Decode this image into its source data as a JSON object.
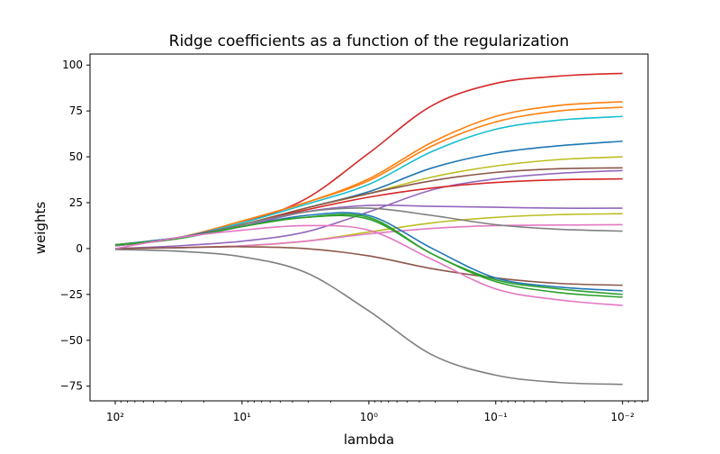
{
  "chart_data": {
    "type": "line",
    "title": "Ridge coefficients as a function of the regularization",
    "xlabel": "lambda",
    "ylabel": "weights",
    "x_scale": "log",
    "x_reversed": true,
    "xlim": [
      158,
      0.0063
    ],
    "ylim": [
      -83,
      106
    ],
    "grid": false,
    "legend": "none",
    "x_ticks": [
      {
        "value": 100,
        "label": "10²"
      },
      {
        "value": 10,
        "label": "10¹"
      },
      {
        "value": 1,
        "label": "10⁰"
      },
      {
        "value": 0.1,
        "label": "10⁻¹"
      },
      {
        "value": 0.01,
        "label": "10⁻²"
      }
    ],
    "y_ticks": [
      -75,
      -50,
      -25,
      0,
      25,
      50,
      75,
      100
    ],
    "x": [
      100,
      31.6,
      10,
      3.16,
      1,
      0.316,
      0.1,
      0.0316,
      0.01
    ],
    "series": [
      {
        "color": "#d62728",
        "values": [
          2,
          6,
          14,
          27,
          52,
          78,
          90,
          94,
          95.5
        ]
      },
      {
        "color": "#ff7f0e",
        "values": [
          2,
          6,
          15,
          25,
          38,
          58,
          72,
          78,
          80
        ]
      },
      {
        "color": "#ff7f0e",
        "values": [
          2,
          6,
          15,
          25,
          37,
          56,
          69,
          75,
          77
        ]
      },
      {
        "color": "#17becf",
        "values": [
          2,
          6,
          14,
          24,
          35,
          53,
          65,
          70,
          72
        ]
      },
      {
        "color": "#1f77b4",
        "values": [
          2,
          6,
          13,
          22,
          31,
          44,
          52,
          56,
          58.5
        ]
      },
      {
        "color": "#bcbd22",
        "values": [
          1.5,
          5.5,
          13,
          22,
          30,
          39,
          45,
          48.5,
          50
        ]
      },
      {
        "color": "#8c564b",
        "values": [
          1.5,
          5.5,
          13,
          22,
          30,
          37,
          41.5,
          43.5,
          44
        ]
      },
      {
        "color": "#9467bd",
        "values": [
          0,
          1.5,
          4,
          9,
          20,
          32,
          38,
          41,
          42.5
        ]
      },
      {
        "color": "#d62728",
        "values": [
          2,
          6,
          13,
          21,
          28,
          33,
          36,
          37.5,
          38
        ]
      },
      {
        "color": "#9467bd",
        "values": [
          1.5,
          5.5,
          12,
          20,
          23.5,
          23,
          22.5,
          22,
          22
        ]
      },
      {
        "color": "#bcbd22",
        "values": [
          0,
          0.5,
          1.5,
          4,
          9,
          14,
          17,
          18.5,
          19
        ]
      },
      {
        "color": "#e377c2",
        "values": [
          0,
          0.5,
          1.5,
          4,
          8,
          11,
          12.5,
          12.8,
          13
        ]
      },
      {
        "color": "#7f7f7f",
        "values": [
          1.5,
          5.5,
          13,
          20,
          22,
          18,
          13,
          10.5,
          9.5
        ]
      },
      {
        "color": "#8c564b",
        "values": [
          0,
          0.5,
          1,
          0,
          -4,
          -11,
          -16,
          -19,
          -20
        ]
      },
      {
        "color": "#1f77b4",
        "values": [
          2,
          6,
          12,
          18,
          18,
          0,
          -16,
          -21,
          -23
        ]
      },
      {
        "color": "#2ca02c",
        "values": [
          2,
          5.5,
          12,
          17,
          17,
          -3,
          -17,
          -22,
          -25
        ]
      },
      {
        "color": "#2ca02c",
        "values": [
          2,
          5.5,
          12,
          17,
          16,
          -3,
          -18,
          -24,
          -26.5
        ]
      },
      {
        "color": "#e377c2",
        "values": [
          0,
          6,
          10,
          12.5,
          10,
          -6,
          -22,
          -28,
          -31
        ]
      },
      {
        "color": "#7f7f7f",
        "values": [
          -0.5,
          -1.5,
          -4.5,
          -13,
          -34,
          -58,
          -69,
          -73,
          -74
        ]
      }
    ]
  }
}
